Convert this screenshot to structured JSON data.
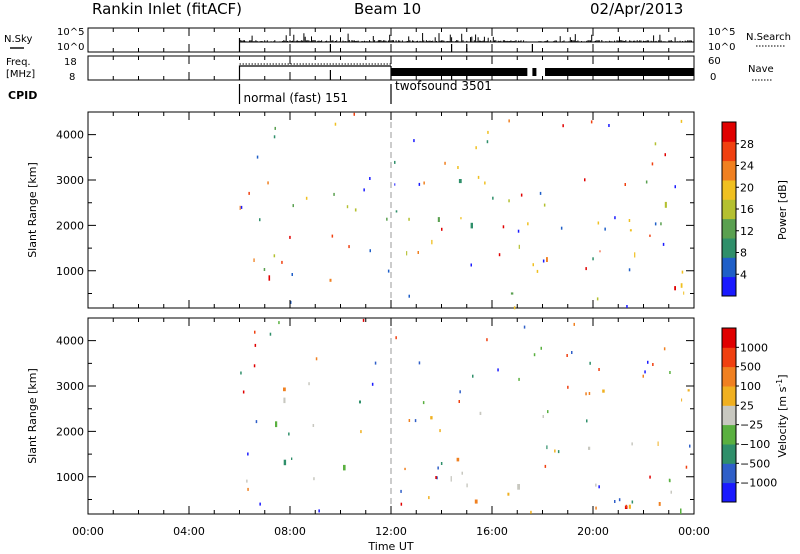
{
  "header": {
    "station": "Rankin Inlet (fitACF)",
    "beam": "Beam 10",
    "date": "02/Apr/2013"
  },
  "chart_data": [
    {
      "type": "line",
      "panel": "noise",
      "left_label": "N.Sky",
      "right_label": "N.Search",
      "left_ticks": [
        "10^5",
        "10^0"
      ],
      "right_ticks": [
        "10^5",
        "10^0"
      ],
      "x_range_hours": [
        0,
        24
      ],
      "data_start_hour": 6.0,
      "data_gap_hours": [
        [
          17.4,
          17.8
        ],
        [
          18.0,
          18.1
        ]
      ]
    },
    {
      "type": "line",
      "panel": "frequency",
      "left_label_lines": [
        "Freq.",
        "[MHz]"
      ],
      "right_label": "Nave",
      "left_ticks": [
        "18",
        "8"
      ],
      "right_ticks": [
        "60",
        "0"
      ],
      "x_range_hours": [
        0,
        24
      ],
      "data_start_hour": 6.0,
      "mode_change_hour": 12.0
    },
    {
      "type": "table",
      "panel": "cpid",
      "label": "CPID",
      "segments": [
        {
          "start_hour": 6.0,
          "end_hour": 12.0,
          "name": "normal (fast) 151"
        },
        {
          "start_hour": 12.0,
          "end_hour": 24.0,
          "name": "twofsound 3501"
        }
      ]
    },
    {
      "type": "heatmap",
      "panel": "power",
      "ylabel": "Slant Range [km]",
      "yticks": [
        1000,
        2000,
        3000,
        4000
      ],
      "ylim": [
        180,
        4500
      ],
      "x_range_hours": [
        0,
        24
      ],
      "colorbar_label": "Power [dB]",
      "colorbar_ticks": [
        4,
        8,
        12,
        16,
        20,
        24,
        28
      ],
      "colorbar_range": [
        0,
        32
      ],
      "colors": [
        "#1a1aff",
        "#1f5fc8",
        "#2f8f6a",
        "#5aa050",
        "#b4c030",
        "#f0c020",
        "#f08020",
        "#f04010",
        "#e00000"
      ],
      "scatter_bands": [
        {
          "x": [
            6.0,
            8.5
          ],
          "y": [
            2100,
            2800
          ],
          "level": 0.68
        },
        {
          "x": [
            6.0,
            11.0
          ],
          "y": [
            800,
            1700
          ],
          "level": 0.82
        },
        {
          "x": [
            8.5,
            12.0
          ],
          "y": [
            1900,
            2700
          ],
          "level": 0.48
        },
        {
          "x": [
            12.0,
            17.4
          ],
          "y": [
            500,
            2500
          ],
          "level": 0.48
        },
        {
          "x": [
            12.0,
            16.0
          ],
          "y": [
            2500,
            3300
          ],
          "level": 0.22
        },
        {
          "x": [
            17.8,
            23.0
          ],
          "y": [
            1200,
            2400
          ],
          "level": 0.72
        },
        {
          "x": [
            19.0,
            24.0
          ],
          "y": [
            300,
            1200
          ],
          "level": 0.78
        },
        {
          "x": [
            20.5,
            24.0
          ],
          "y": [
            1800,
            2600
          ],
          "level": 0.6
        }
      ]
    },
    {
      "type": "heatmap",
      "panel": "velocity",
      "ylabel": "Slant Range [km]",
      "yticks": [
        1000,
        2000,
        3000,
        4000
      ],
      "ylim": [
        180,
        4500
      ],
      "xlabel": "Time UT",
      "xticks": [
        "00:00",
        "04:00",
        "08:00",
        "12:00",
        "16:00",
        "20:00",
        "00:00"
      ],
      "x_range_hours": [
        0,
        24
      ],
      "colorbar_label": "Velocity [m s",
      "colorbar_exponent": "-1",
      "colorbar_ticks": [
        "1000",
        "500",
        "100",
        "25",
        "−25",
        "−100",
        "−500",
        "−1000"
      ],
      "colors": [
        "#1a1aff",
        "#2f5fc8",
        "#2f8f6a",
        "#5ab040",
        "#c8c8c0",
        "#f0b020",
        "#f08020",
        "#f04010",
        "#e00000"
      ],
      "scatter_bands": [
        {
          "x": [
            6.0,
            12.0
          ],
          "y": [
            2000,
            3000
          ],
          "level": 0.5
        },
        {
          "x": [
            6.0,
            10.0
          ],
          "y": [
            800,
            1600
          ],
          "level": 0.32
        },
        {
          "x": [
            10.0,
            12.0
          ],
          "y": [
            900,
            1500
          ],
          "level": 0.42
        },
        {
          "x": [
            12.0,
            17.4
          ],
          "y": [
            700,
            2500
          ],
          "level": 0.52
        },
        {
          "x": [
            13.0,
            17.4
          ],
          "y": [
            400,
            1100
          ],
          "level": 0.78
        },
        {
          "x": [
            17.8,
            24.0
          ],
          "y": [
            1600,
            3000
          ],
          "level": 0.5
        },
        {
          "x": [
            18.0,
            23.0
          ],
          "y": [
            300,
            1100
          ],
          "level": 0.8
        },
        {
          "x": [
            22.5,
            24.0
          ],
          "y": [
            300,
            900
          ],
          "level": 0.34
        }
      ]
    }
  ]
}
